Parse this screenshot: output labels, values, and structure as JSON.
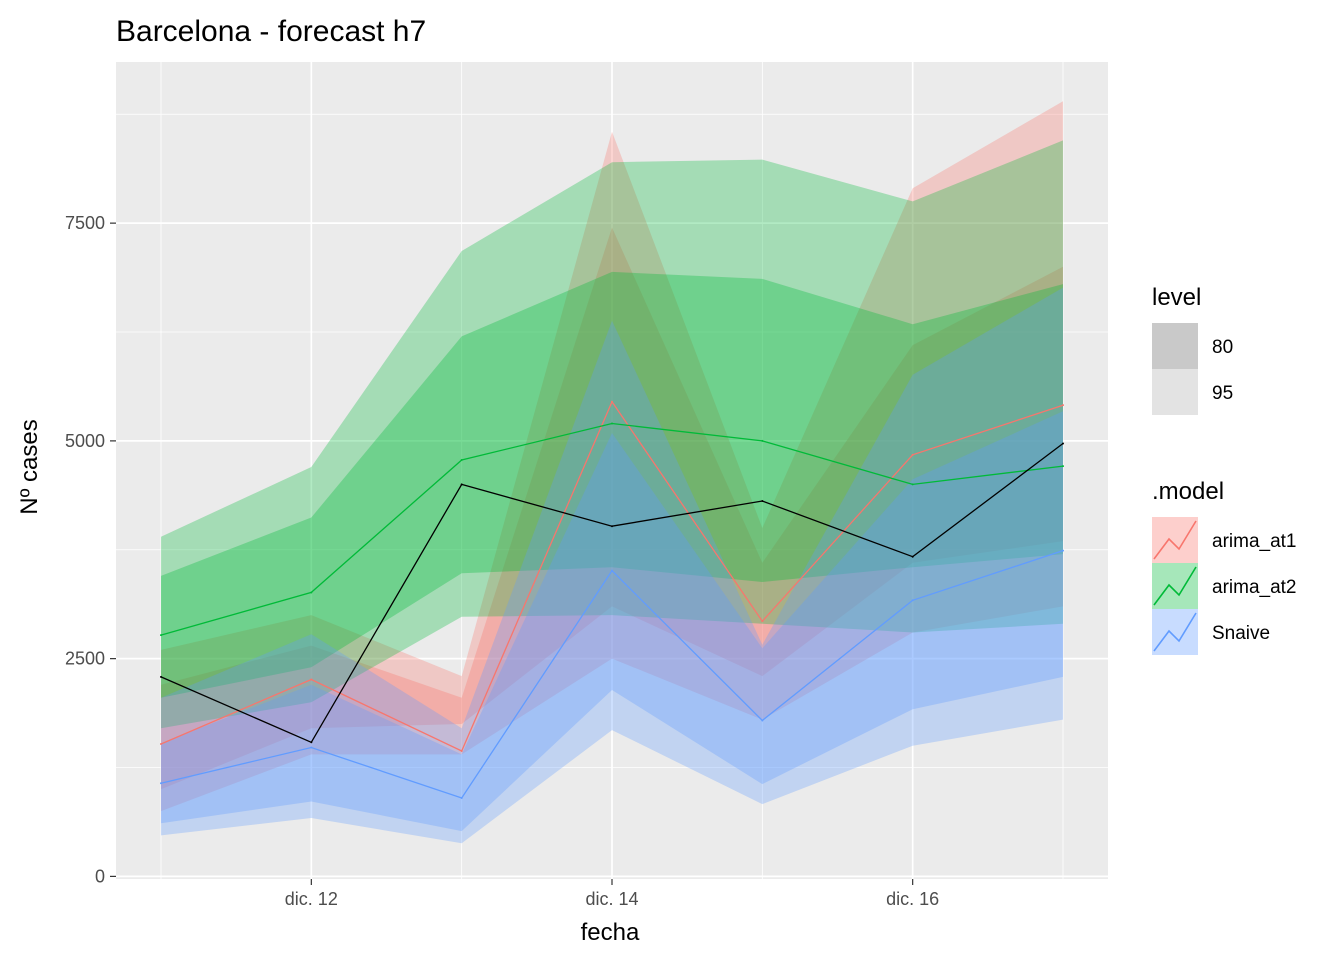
{
  "chart_data": {
    "type": "line",
    "title": "Barcelona - forecast h7",
    "xlabel": "fecha",
    "ylabel": "Nº cases",
    "x": [
      "2021-12-11",
      "2021-12-12",
      "2021-12-13",
      "2021-12-14",
      "2021-12-15",
      "2021-12-16",
      "2021-12-17"
    ],
    "xticks": [
      {
        "x": "2021-12-12",
        "label": "dic. 12"
      },
      {
        "x": "2021-12-14",
        "label": "dic. 14"
      },
      {
        "x": "2021-12-16",
        "label": "dic. 16"
      }
    ],
    "yticks": [
      0,
      2500,
      5000,
      7500
    ],
    "ylim": [
      -30,
      9350
    ],
    "grid": true,
    "legend_position": "right",
    "legend": {
      "level_title": "level",
      "levels": [
        {
          "label": "80",
          "color": "#c9c9c9"
        },
        {
          "label": "95",
          "color": "#e3e3e3"
        }
      ],
      "model_title": ".model"
    },
    "series": [
      {
        "name": "arima_at1",
        "color": "#F8766D",
        "values": [
          1520,
          2260,
          1440,
          5450,
          2930,
          4840,
          5410
        ],
        "lower80": [
          1000,
          1700,
          1750,
          3100,
          2300,
          3600,
          3850
        ],
        "upper80": [
          2200,
          2650,
          2050,
          7450,
          3600,
          6100,
          7000
        ],
        "lower95": [
          750,
          1400,
          1400,
          2500,
          1800,
          2800,
          3100
        ],
        "upper95": [
          2600,
          3000,
          2300,
          8550,
          4000,
          7900,
          8900
        ]
      },
      {
        "name": "arima_at2",
        "color": "#00BA38",
        "values": [
          2770,
          3260,
          4780,
          5200,
          5000,
          4500,
          4710
        ],
        "lower80": [
          2050,
          2400,
          3480,
          3550,
          3380,
          3550,
          3700
        ],
        "upper80": [
          3450,
          4120,
          6200,
          6940,
          6860,
          6340,
          6800
        ],
        "lower95": [
          1700,
          2000,
          2980,
          3000,
          2900,
          2800,
          2900
        ],
        "upper95": [
          3900,
          4700,
          7180,
          8200,
          8230,
          7750,
          8450
        ]
      },
      {
        "name": "Snaive",
        "color": "#619CFF",
        "values": [
          1070,
          1480,
          900,
          3510,
          1790,
          3170,
          3740
        ],
        "lower80": [
          610,
          860,
          520,
          2140,
          1060,
          1920,
          2290
        ],
        "upper80": [
          1530,
          2200,
          1400,
          5090,
          2620,
          4560,
          5340
        ],
        "lower95": [
          470,
          670,
          380,
          1680,
          830,
          1500,
          1800
        ],
        "upper95": [
          2050,
          2780,
          1700,
          6380,
          2660,
          5760,
          6760
        ]
      },
      {
        "name": "",
        "color": "#000000",
        "values": [
          2290,
          1540,
          4500,
          4020,
          4310,
          3670,
          4970
        ]
      }
    ]
  }
}
